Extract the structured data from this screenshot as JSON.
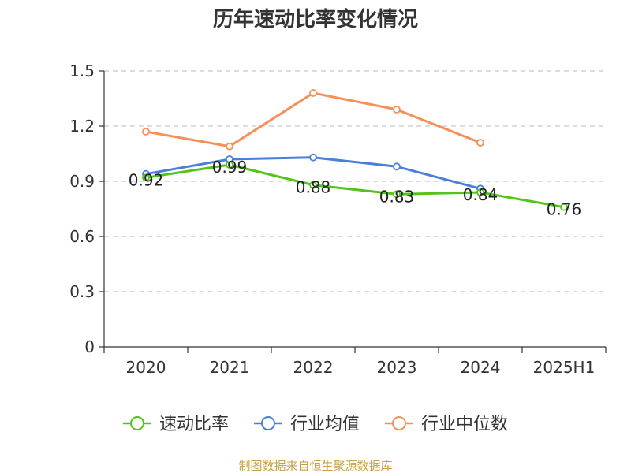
{
  "chart_data": {
    "type": "line",
    "title": "历年速动比率变化情况",
    "categories": [
      "2020",
      "2021",
      "2022",
      "2023",
      "2024",
      "2025H1"
    ],
    "ylim": [
      0,
      1.5
    ],
    "yticks": [
      "0",
      "0.3",
      "0.6",
      "0.9",
      "1.2",
      "1.5"
    ],
    "grid": true,
    "legend_position": "bottom",
    "series": [
      {
        "name": "速动比率",
        "color": "#52c41a",
        "values": [
          0.92,
          0.99,
          0.88,
          0.83,
          0.84,
          0.76
        ],
        "data_labels": [
          "0.92",
          "0.99",
          "0.88",
          "0.83",
          "0.84",
          "0.76"
        ]
      },
      {
        "name": "行业均值",
        "color": "#4a7fd9",
        "values": [
          0.94,
          1.02,
          1.03,
          0.98,
          0.86,
          null
        ]
      },
      {
        "name": "行业中位数",
        "color": "#f5905a",
        "values": [
          1.17,
          1.09,
          1.38,
          1.29,
          1.11,
          null
        ]
      }
    ],
    "source": "制图数据来自恒生聚源数据库"
  }
}
